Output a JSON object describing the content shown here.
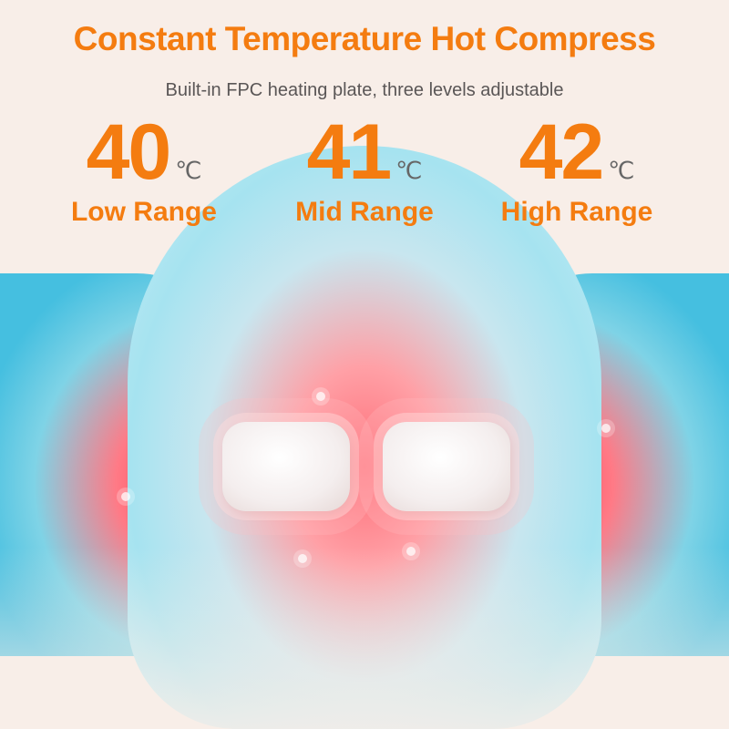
{
  "header": {
    "title": "Constant Temperature Hot Compress",
    "subtitle": "Built-in FPC heating plate, three levels adjustable"
  },
  "levels": [
    {
      "value": "40",
      "unit": "℃",
      "label": "Low Range"
    },
    {
      "value": "41",
      "unit": "℃",
      "label": "Mid Range"
    },
    {
      "value": "42",
      "unit": "℃",
      "label": "High Range"
    }
  ],
  "colors": {
    "accent": "#f47c10",
    "heat": "#ff3a4a",
    "cool": "#45bfe0"
  }
}
